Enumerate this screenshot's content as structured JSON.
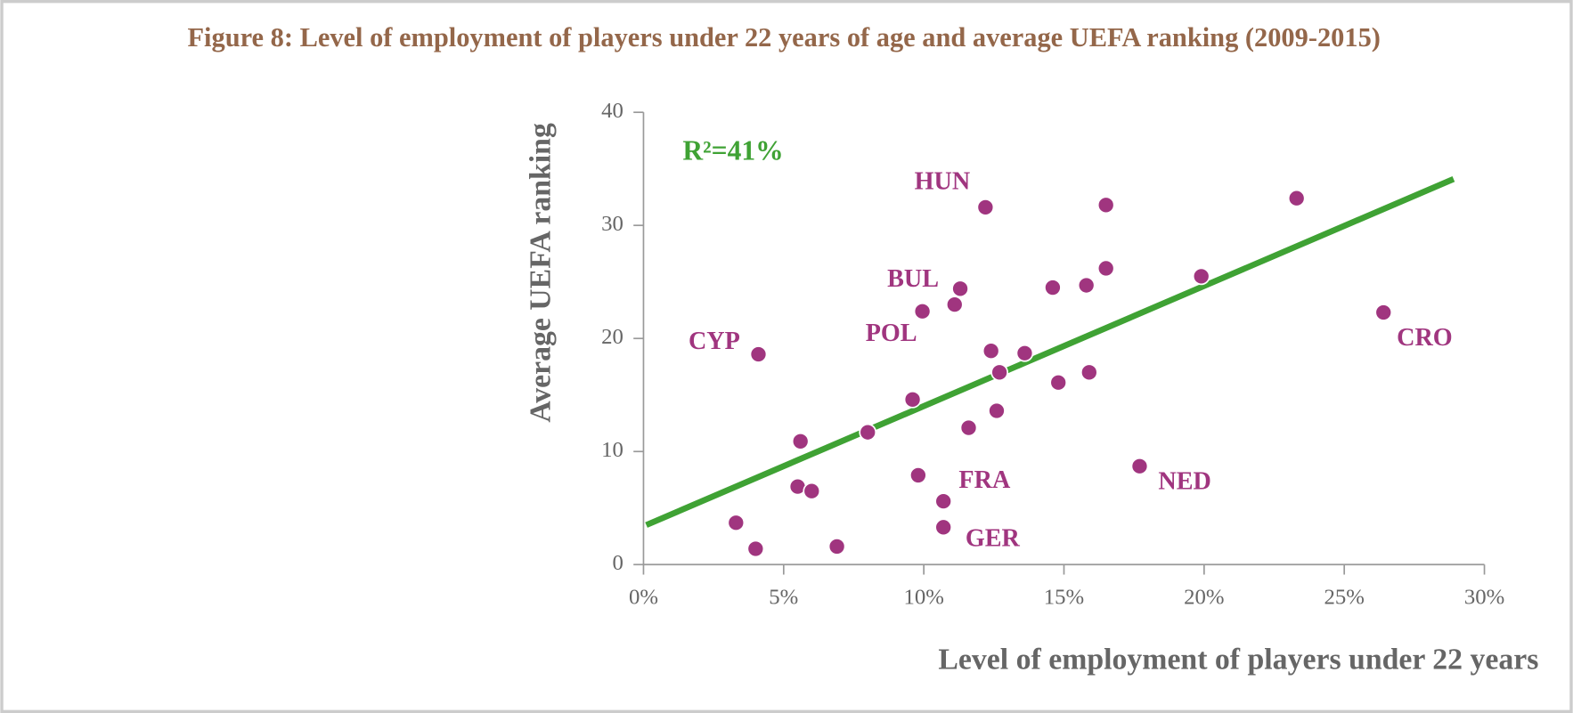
{
  "chart_data": {
    "type": "scatter",
    "title": "Figure 8: Level of employment of players under 22 years of age and average UEFA ranking (2009-2015)",
    "x_label": "Level of employment of players under 22 years",
    "y_label": "Average UEFA ranking",
    "annotation": "R²=41%",
    "color": "#a0357f",
    "x": [
      3.3,
      4.0,
      4.1,
      5.6,
      5.5,
      6.0,
      6.9,
      8.0,
      9.6,
      9.8,
      9.95,
      10.7,
      10.7,
      11.1,
      11.3,
      11.6,
      12.2,
      12.4,
      12.6,
      12.7,
      13.6,
      14.6,
      14.8,
      15.8,
      15.9,
      16.5,
      16.5,
      17.7,
      19.9,
      23.3,
      26.4
    ],
    "y": [
      3.7,
      1.4,
      18.6,
      10.9,
      6.9,
      6.5,
      1.6,
      11.7,
      14.6,
      7.9,
      22.4,
      5.6,
      3.3,
      23.0,
      24.4,
      12.1,
      31.6,
      18.9,
      13.6,
      17.0,
      18.7,
      24.5,
      16.1,
      24.7,
      17.0,
      31.8,
      26.2,
      8.7,
      25.5,
      32.4,
      22.3
    ],
    "labels": [
      null,
      null,
      "CYP",
      null,
      null,
      null,
      null,
      null,
      null,
      null,
      "POL",
      "FRA",
      "GER",
      null,
      "BUL",
      null,
      "HUN",
      null,
      null,
      null,
      null,
      null,
      null,
      null,
      null,
      null,
      null,
      "NED",
      null,
      null,
      "CRO"
    ],
    "trendline": {
      "x": [
        0.1,
        28.9
      ],
      "y": [
        3.5,
        34.1
      ],
      "color": "#3fa234"
    },
    "xlim": [
      0,
      30
    ],
    "ylim": [
      0,
      40
    ],
    "xticks": [
      {
        "value": 0,
        "label": "0%"
      },
      {
        "value": 5,
        "label": "5%"
      },
      {
        "value": 10,
        "label": "10%"
      },
      {
        "value": 15,
        "label": "15%"
      },
      {
        "value": 20,
        "label": "20%"
      },
      {
        "value": 25,
        "label": "25%"
      },
      {
        "value": 30,
        "label": "30%"
      }
    ],
    "yticks": [
      0,
      10,
      20,
      30,
      40
    ]
  }
}
